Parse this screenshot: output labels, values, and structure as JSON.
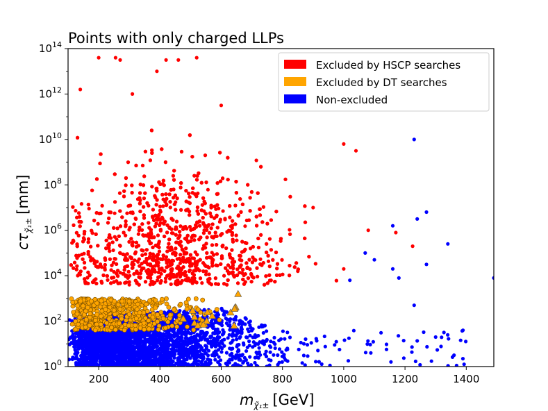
{
  "chart_data": {
    "type": "scatter",
    "title": "Points with only charged LLPs",
    "xlabel_main": "m",
    "xlabel_sub": "χ̃₁±",
    "xlabel_unit": "[GeV]",
    "ylabel_main": "cτ",
    "ylabel_sub": "χ̃₁±",
    "ylabel_unit": "[mm]",
    "xlim": [
      100,
      1490
    ],
    "ylim_log10": [
      0,
      14
    ],
    "yscale": "log",
    "x_ticks": [
      200,
      400,
      600,
      800,
      1000,
      1200,
      1400
    ],
    "x_tick_labels": [
      "200",
      "400",
      "600",
      "800",
      "1000",
      "1200",
      "1400"
    ],
    "y_ticks_log10": [
      0,
      2,
      4,
      6,
      8,
      10,
      12,
      14
    ],
    "y_tick_bases": [
      "10",
      "10",
      "10",
      "10",
      "10",
      "10",
      "10",
      "10"
    ],
    "y_tick_exponents": [
      "0",
      "2",
      "4",
      "6",
      "8",
      "10",
      "12",
      "14"
    ],
    "legend_position": "top-right",
    "colors": {
      "hscp": "#ff0000",
      "dt": "#ffa500",
      "non_excluded": "#0000ff"
    },
    "series": [
      {
        "name": "Excluded by HSCP searches",
        "key": "hscp",
        "marker": "circle",
        "color": "#ff0000",
        "description_distribution": "dense cloud ~x 110-1050 GeV, log10(ctau) 3.5-14, peak near 450 GeV, 5-6",
        "sample_points": [
          [
            200,
            13.6
          ],
          [
            255,
            13.6
          ],
          [
            270,
            13.5
          ],
          [
            390,
            13.0
          ],
          [
            420,
            13.5
          ],
          [
            460,
            13.5
          ],
          [
            520,
            13.6
          ],
          [
            140,
            12.2
          ],
          [
            310,
            12.0
          ],
          [
            600,
            11.5
          ],
          [
            1000,
            9.8
          ],
          [
            1040,
            9.5
          ],
          [
            900,
            7.0
          ],
          [
            1080,
            6.0
          ],
          [
            1170,
            5.9
          ],
          [
            1225,
            5.3
          ],
          [
            1000,
            4.3
          ],
          [
            850,
            4.2
          ],
          [
            520,
            3.7
          ],
          [
            300,
            3.6
          ]
        ]
      },
      {
        "name": "Excluded by DT searches",
        "key": "dt",
        "marker": "circle/triangle",
        "color": "#ffa500",
        "description_distribution": "band x 110-660 GeV, log10(ctau) 1.5-3.2",
        "sample_points": [
          [
            110,
            2.7
          ],
          [
            150,
            2.5
          ],
          [
            200,
            2.2
          ],
          [
            250,
            2.8
          ],
          [
            300,
            2.5
          ],
          [
            350,
            2.6
          ],
          [
            400,
            2.3
          ],
          [
            450,
            2.6
          ],
          [
            500,
            2.2
          ],
          [
            550,
            2.5
          ],
          [
            600,
            2.4
          ],
          [
            655,
            3.2
          ]
        ]
      },
      {
        "name": "Non-excluded",
        "key": "non_excluded",
        "marker": "circle",
        "color": "#0000ff",
        "description_distribution": "dense region x 100-1000 GeV, log10(ctau) 0-2.5, plus sparse outliers at high mass",
        "sample_points": [
          [
            1230,
            10.0
          ],
          [
            1160,
            6.2
          ],
          [
            1240,
            6.5
          ],
          [
            1270,
            6.8
          ],
          [
            1340,
            5.4
          ],
          [
            1070,
            5.0
          ],
          [
            1100,
            4.7
          ],
          [
            1160,
            4.3
          ],
          [
            1270,
            4.5
          ],
          [
            1180,
            3.9
          ],
          [
            1490,
            3.9
          ],
          [
            1020,
            3.8
          ],
          [
            1230,
            2.7
          ],
          [
            1300,
            1.3
          ],
          [
            1360,
            0.5
          ]
        ]
      }
    ]
  }
}
